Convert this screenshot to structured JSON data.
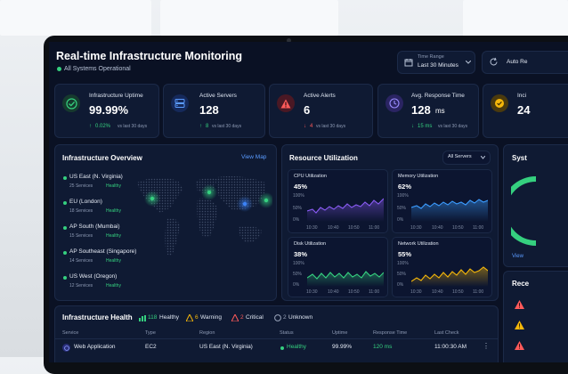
{
  "header": {
    "title": "Real-time Infrastructure Monitoring",
    "status": "All Systems Operational",
    "time_range_label": "Time Range",
    "time_range_value": "Last 30 Minutes",
    "auto_refresh_label": "Auto Re"
  },
  "kpis": [
    {
      "label": "Infrastructure Uptime",
      "value": "99.99%",
      "delta": "0.02%",
      "compare": "vs last 30 days",
      "direction": "up",
      "color": "#35d07f"
    },
    {
      "label": "Active Servers",
      "value": "128",
      "delta": "8",
      "compare": "vs last 30 days",
      "direction": "up",
      "color": "#3b82f6"
    },
    {
      "label": "Active Alerts",
      "value": "6",
      "delta": "4",
      "compare": "vs last 30 days",
      "direction": "down",
      "color": "#ff5a5a"
    },
    {
      "label": "Avg. Response Time",
      "value": "128",
      "unit": "ms",
      "delta": "15 ms",
      "compare": "vs last 30 days",
      "direction": "down",
      "color": "#7c6cf5"
    },
    {
      "label": "Inci",
      "value": "24",
      "color": "#f5b70a"
    }
  ],
  "overview": {
    "title": "Infrastructure Overview",
    "link": "View Map",
    "regions": [
      {
        "name": "US East (N. Virginia)",
        "services": "25 Services",
        "status": "Healthy"
      },
      {
        "name": "EU (London)",
        "services": "18 Services",
        "status": "Healthy"
      },
      {
        "name": "AP South (Mumbai)",
        "services": "15 Services",
        "status": "Healthy"
      },
      {
        "name": "AP Southeast (Singapore)",
        "services": "14 Services",
        "status": "Healthy"
      },
      {
        "name": "US West (Oregon)",
        "services": "12 Services",
        "status": "Healthy"
      }
    ]
  },
  "resources": {
    "title": "Resource Utilization",
    "filter": "All Servers",
    "charts": [
      {
        "name": "CPU Utilization",
        "value": "45%",
        "color": "#8b5cf6",
        "yticks": [
          "100%",
          "50%",
          "0%"
        ],
        "xticks": [
          "10:30",
          "10:40",
          "10:50",
          "11:00"
        ]
      },
      {
        "name": "Memory Utilization",
        "value": "62%",
        "color": "#3b9cff",
        "yticks": [
          "100%",
          "50%",
          "0%"
        ],
        "xticks": [
          "10:30",
          "10:40",
          "10:50",
          "11:00"
        ]
      },
      {
        "name": "Disk Utilization",
        "value": "38%",
        "color": "#35d07f",
        "yticks": [
          "100%",
          "50%",
          "0%"
        ],
        "xticks": [
          "10:30",
          "10:40",
          "10:50",
          "11:00"
        ]
      },
      {
        "name": "Network Utilization",
        "value": "55%",
        "color": "#f5b70a",
        "yticks": [
          "100%",
          "50%",
          "0%"
        ],
        "xticks": [
          "10:30",
          "10:40",
          "10:50",
          "11:00"
        ]
      }
    ]
  },
  "side": {
    "title": "Syst",
    "link": "View",
    "recent_title": "Rece"
  },
  "health": {
    "title": "Infrastructure Health",
    "summary": [
      {
        "count": "118",
        "label": "Healthy",
        "color": "#35d07f"
      },
      {
        "count": "6",
        "label": "Warning",
        "color": "#f5b70a"
      },
      {
        "count": "2",
        "label": "Critical",
        "color": "#ff5a5a"
      },
      {
        "count": "2",
        "label": "Unknown",
        "color": "#9aa5bb"
      }
    ],
    "columns": [
      "Service",
      "Type",
      "Region",
      "Status",
      "Uptime",
      "Response Time",
      "Last Check"
    ],
    "rows": [
      {
        "service": "Web Application",
        "type": "EC2",
        "region": "US East (N. Virginia)",
        "status": "Healthy",
        "uptime": "99.99%",
        "response": "120 ms",
        "last_check": "11:00:30 AM"
      }
    ]
  }
}
